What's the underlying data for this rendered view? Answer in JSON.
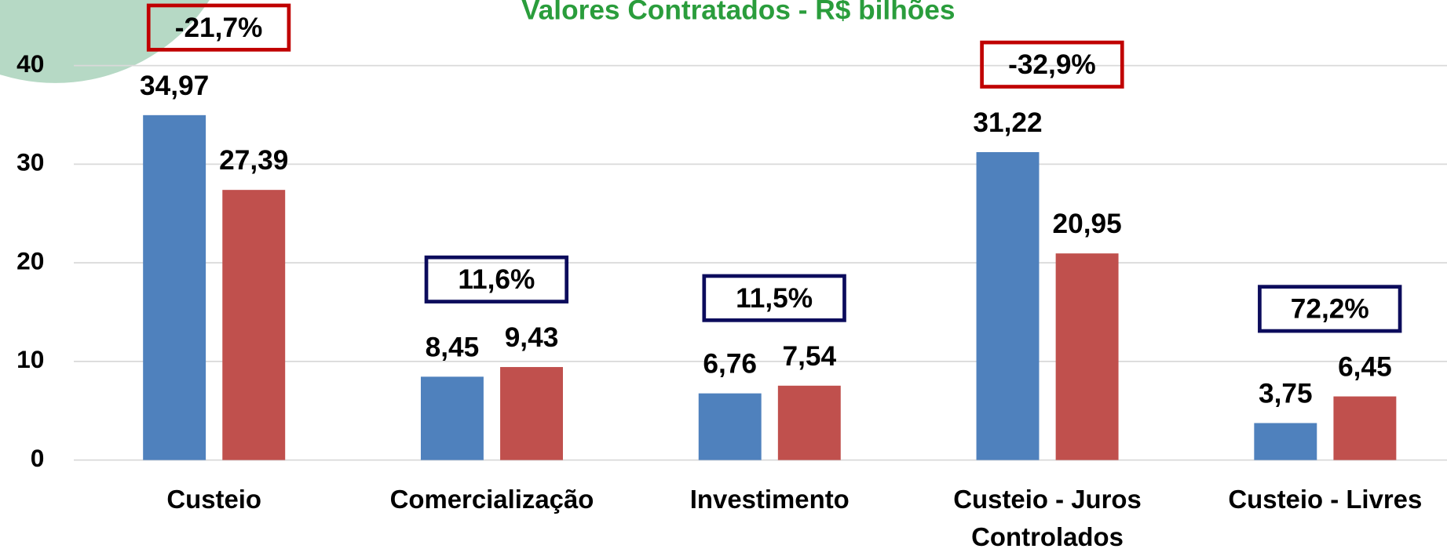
{
  "chart_data": {
    "type": "bar",
    "title": "Valores Contratados - R$ bilhões",
    "categories": [
      "Custeio",
      "Comercialização",
      "Investimento",
      "Custeio - Juros Controlados",
      "Custeio - Livres"
    ],
    "series": [
      {
        "color": "#4f81bd",
        "values": [
          34.97,
          8.45,
          6.76,
          31.22,
          3.75
        ],
        "value_labels": [
          "34,97",
          "8,45",
          "6,76",
          "31,22",
          "3,75"
        ]
      },
      {
        "color": "#c0504d",
        "values": [
          27.39,
          9.43,
          7.54,
          20.95,
          6.45
        ],
        "value_labels": [
          "27,39",
          "9,43",
          "7,54",
          "20,95",
          "6,45"
        ]
      }
    ],
    "annotations": [
      {
        "text": "-21,7%",
        "color": "#c00000"
      },
      {
        "text": "11,6%",
        "color": "#0c0c5c"
      },
      {
        "text": "11,5%",
        "color": "#0c0c5c"
      },
      {
        "text": "-32,9%",
        "color": "#c00000"
      },
      {
        "text": "72,2%",
        "color": "#0c0c5c"
      }
    ],
    "title_color": "#2a9d3c",
    "ylim": [
      0,
      40
    ],
    "yticks": [
      0,
      10,
      20,
      30,
      40
    ],
    "grid": true
  }
}
